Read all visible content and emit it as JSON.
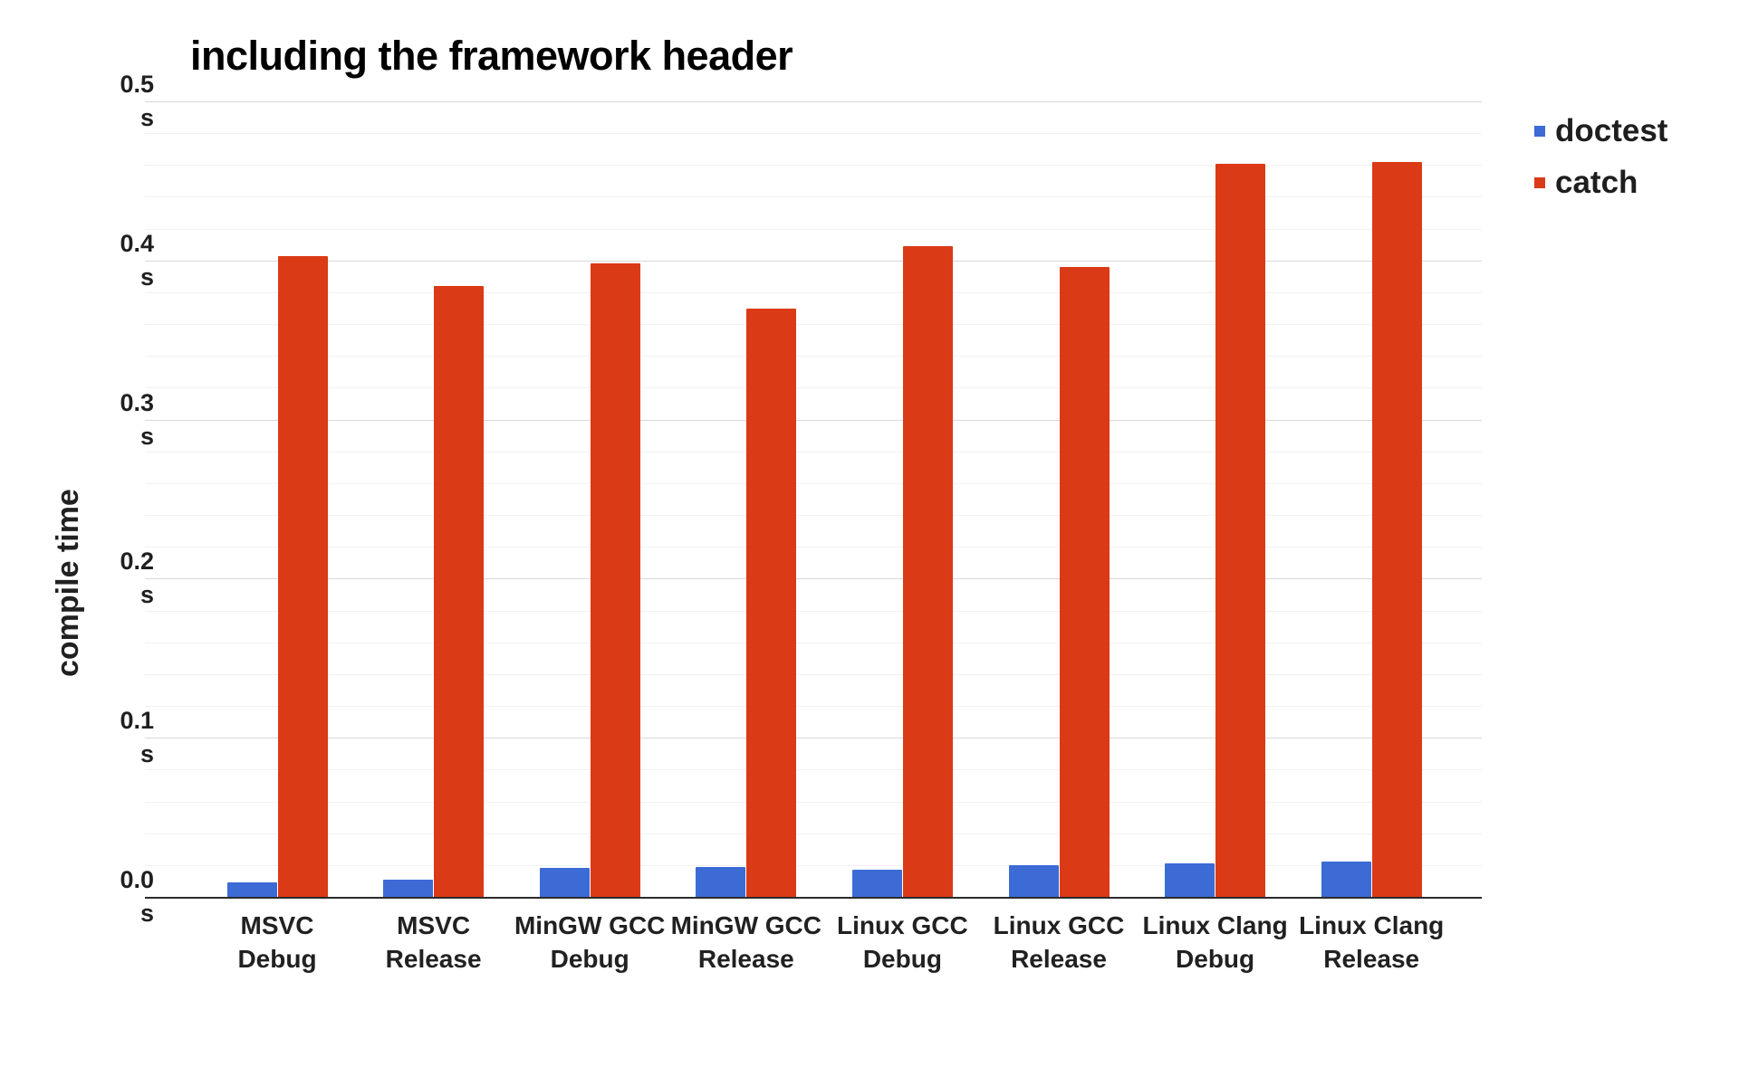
{
  "chart_data": {
    "type": "bar",
    "title": "including the framework header",
    "ylabel": "compile time",
    "xlabel": "",
    "unit": "s",
    "ylim": [
      0,
      0.5
    ],
    "ytick_step": 0.1,
    "minor_grid_step": 0.02,
    "yticks": [
      "0.0",
      "0.1",
      "0.2",
      "0.3",
      "0.4",
      "0.5"
    ],
    "ytick_suffix": "s",
    "grid": true,
    "legend_position": "right",
    "categories": [
      [
        "MSVC",
        "Debug"
      ],
      [
        "MSVC",
        "Release"
      ],
      [
        "MinGW GCC",
        "Debug"
      ],
      [
        "MinGW GCC",
        "Release"
      ],
      [
        "Linux GCC",
        "Debug"
      ],
      [
        "Linux GCC",
        "Release"
      ],
      [
        "Linux Clang",
        "Debug"
      ],
      [
        "Linux Clang",
        "Release"
      ]
    ],
    "series": [
      {
        "name": "doctest",
        "color": "#3D6BD5",
        "values": [
          0.009,
          0.011,
          0.018,
          0.019,
          0.017,
          0.02,
          0.021,
          0.022
        ]
      },
      {
        "name": "catch",
        "color": "#DB3A16",
        "values": [
          0.403,
          0.384,
          0.398,
          0.37,
          0.409,
          0.396,
          0.461,
          0.462
        ]
      }
    ],
    "colors": {
      "title": "#000000",
      "axis_text": "#212121",
      "major_grid": "#d9d9d9",
      "minor_grid": "#f1f1f1",
      "baseline": "#2b2b2b"
    }
  }
}
